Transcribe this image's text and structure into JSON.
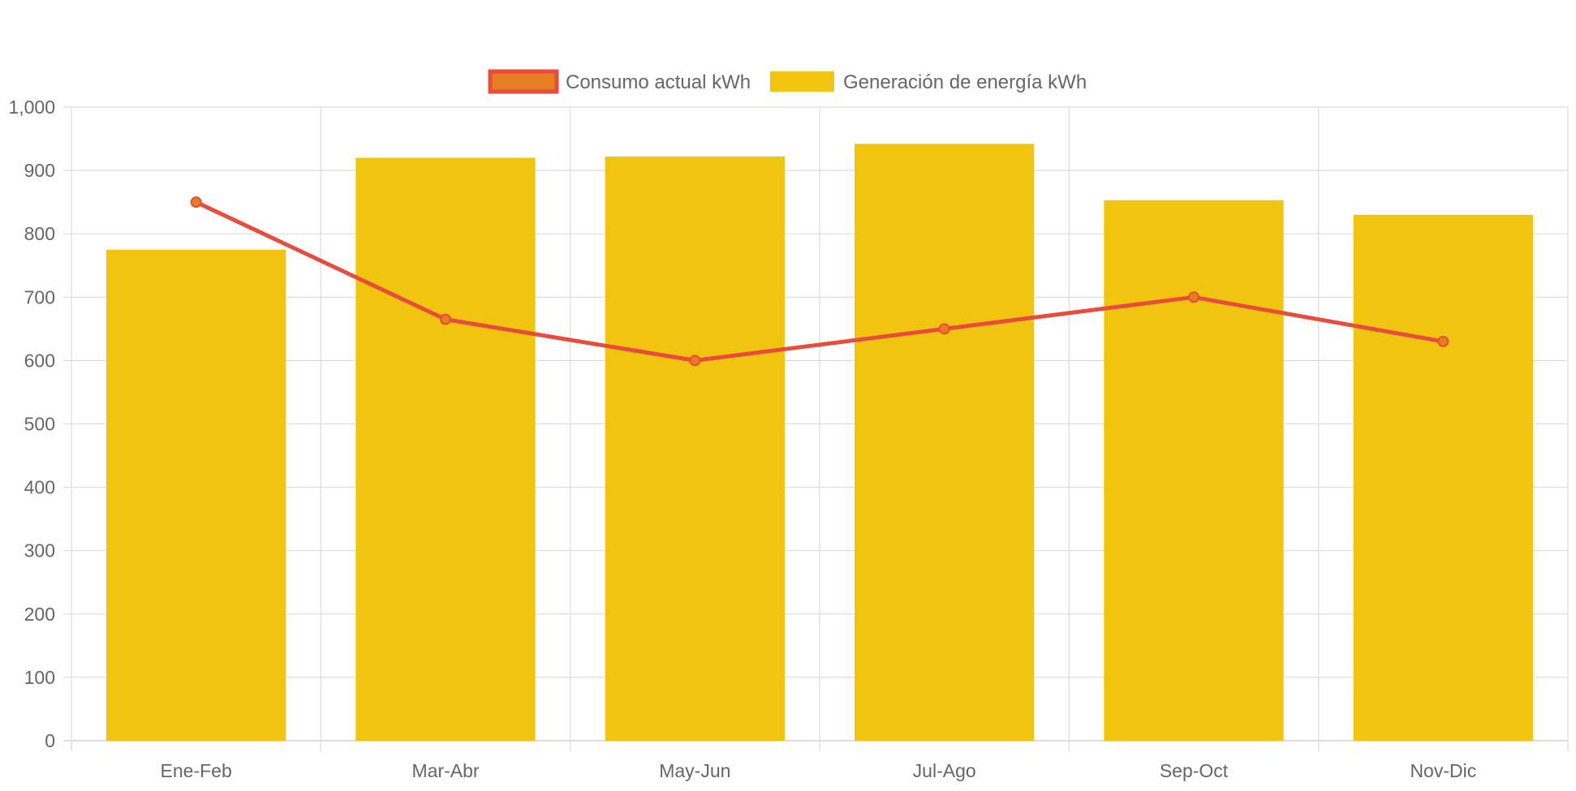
{
  "chart_data": {
    "type": "bar",
    "categories": [
      "Ene-Feb",
      "Mar-Abr",
      "May-Jun",
      "Jul-Ago",
      "Sep-Oct",
      "Nov-Dic"
    ],
    "series": [
      {
        "name": "Consumo actual kWh",
        "type": "line",
        "values": [
          850,
          665,
          600,
          650,
          700,
          630
        ],
        "color": "#e74c3c",
        "point_color": "#e67e22"
      },
      {
        "name": "Generación de energía kWh",
        "type": "bar",
        "values": [
          775,
          920,
          922,
          942,
          853,
          830
        ],
        "color": "#f1c40f"
      }
    ],
    "ylim": [
      0,
      1000
    ],
    "yticks": [
      "0",
      "100",
      "200",
      "300",
      "400",
      "500",
      "600",
      "700",
      "800",
      "900",
      "1,000"
    ],
    "grid": true,
    "legend_position": "top-center"
  }
}
